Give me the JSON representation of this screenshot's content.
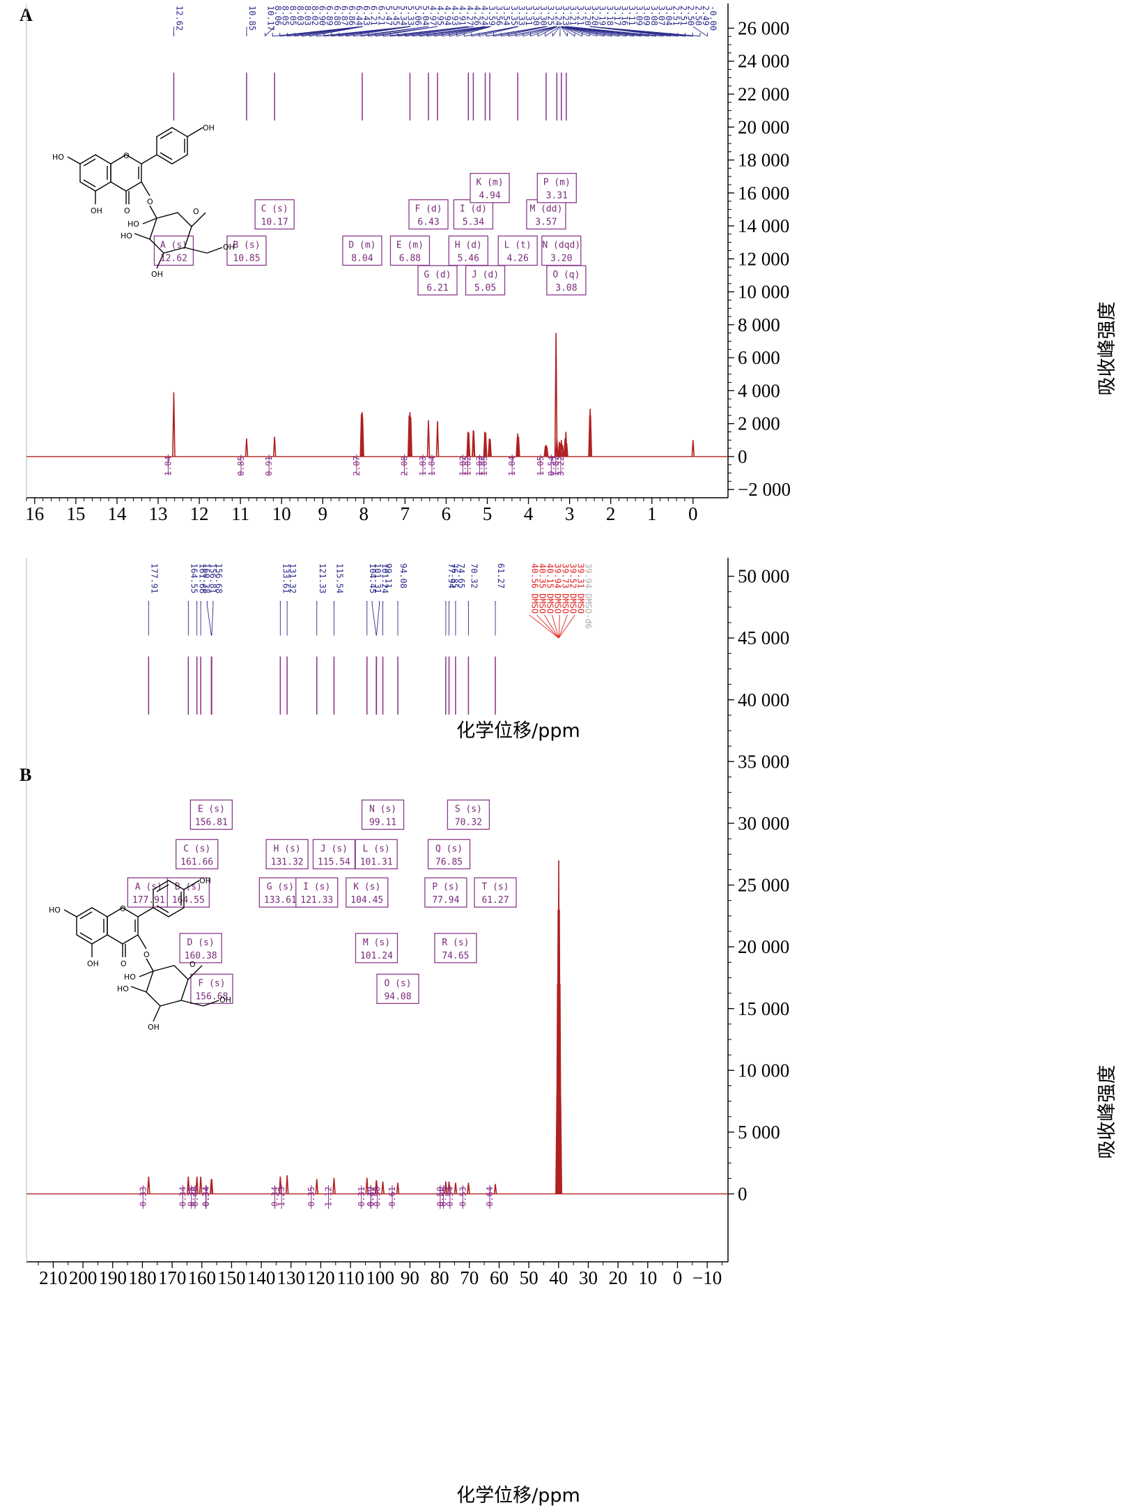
{
  "colors": {
    "spectrum": "#b02020",
    "peak_label": "#2b2b8c",
    "integral": "#8a2d8a",
    "multiplet_box": "#8a3a8a",
    "solvent_label": "#e02020",
    "axis": "#000000"
  },
  "structure_labels": {
    "oh": "OH",
    "ho": "HO",
    "o": "O"
  },
  "chart_data": [
    {
      "panel": "A",
      "type": "line",
      "title": "",
      "xlabel": "化学位移/ppm",
      "ylabel": "吸收峰强度",
      "xlim": [
        16.2,
        -0.85
      ],
      "ylim": [
        -2500,
        27500
      ],
      "x_reversed": true,
      "x_ticks": [
        16,
        15,
        14,
        13,
        12,
        11,
        10,
        9,
        8,
        7,
        6,
        5,
        4,
        3,
        2,
        1,
        0
      ],
      "x_tick_labels": [
        "16",
        "15",
        "14",
        "13",
        "12",
        "11",
        "10",
        "9",
        "8",
        "7",
        "6",
        "5",
        "4",
        "3",
        "2",
        "1",
        "0"
      ],
      "y_ticks": [
        26000,
        24000,
        22000,
        20000,
        18000,
        16000,
        14000,
        12000,
        10000,
        8000,
        6000,
        4000,
        2000,
        0,
        -2000
      ],
      "y_tick_labels": [
        "26 000",
        "24 000",
        "22 000",
        "20 000",
        "18 000",
        "16 000",
        "14 000",
        "12 000",
        "10 000",
        "8 000",
        "6 000",
        "4 000",
        "2 000",
        "0",
        "−2 000"
      ],
      "peaks": [
        {
          "x": 12.62,
          "y": 3900
        },
        {
          "x": 10.85,
          "y": 1100
        },
        {
          "x": 10.17,
          "y": 1200
        },
        {
          "x": 8.06,
          "y": 2600
        },
        {
          "x": 8.04,
          "y": 2700
        },
        {
          "x": 8.03,
          "y": 2400
        },
        {
          "x": 6.9,
          "y": 2500
        },
        {
          "x": 6.88,
          "y": 2700
        },
        {
          "x": 6.86,
          "y": 2400
        },
        {
          "x": 6.43,
          "y": 2200
        },
        {
          "x": 6.21,
          "y": 2150
        },
        {
          "x": 5.47,
          "y": 1500
        },
        {
          "x": 5.45,
          "y": 1450
        },
        {
          "x": 5.34,
          "y": 1600
        },
        {
          "x": 5.33,
          "y": 1550
        },
        {
          "x": 5.06,
          "y": 1500
        },
        {
          "x": 5.04,
          "y": 1450
        },
        {
          "x": 4.95,
          "y": 1100
        },
        {
          "x": 4.93,
          "y": 1050
        },
        {
          "x": 4.27,
          "y": 1200
        },
        {
          "x": 4.26,
          "y": 1400
        },
        {
          "x": 4.24,
          "y": 1200
        },
        {
          "x": 3.59,
          "y": 650
        },
        {
          "x": 3.57,
          "y": 700
        },
        {
          "x": 3.55,
          "y": 600
        },
        {
          "x": 3.33,
          "y": 7500
        },
        {
          "x": 3.31,
          "y": 1100
        },
        {
          "x": 3.25,
          "y": 900
        },
        {
          "x": 3.23,
          "y": 800
        },
        {
          "x": 3.2,
          "y": 1000
        },
        {
          "x": 3.17,
          "y": 700
        },
        {
          "x": 3.11,
          "y": 1100
        },
        {
          "x": 3.09,
          "y": 1500
        },
        {
          "x": 3.07,
          "y": 800
        },
        {
          "x": 2.51,
          "y": 2500
        },
        {
          "x": 2.5,
          "y": 2900
        },
        {
          "x": 2.49,
          "y": 2500
        },
        {
          "x": 0.0,
          "y": 1000
        }
      ],
      "peak_labels": [
        "12.62",
        "10.85",
        "10.17",
        "8.06",
        "8.05",
        "8.05",
        "8.03",
        "8.03",
        "8.02",
        "6.90",
        "6.89",
        "6.88",
        "6.87",
        "6.86",
        "6.44",
        "6.43",
        "6.21",
        "6.21",
        "5.47",
        "5.45",
        "5.34",
        "5.33",
        "5.06",
        "5.04",
        "4.97",
        "4.95",
        "4.94",
        "4.93",
        "4.91",
        "4.27",
        "4.26",
        "4.24",
        "3.59",
        "3.56",
        "3.54",
        "3.35",
        "3.33",
        "3.31",
        "3.30",
        "3.30",
        "3.25",
        "3.24",
        "3.23",
        "3.21",
        "3.21",
        "3.20",
        "3.20",
        "3.19",
        "3.18",
        "3.17",
        "3.16",
        "3.11",
        "3.09",
        "3.09",
        "3.08",
        "3.07",
        "3.04",
        "2.51",
        "2.51",
        "2.50",
        "2.50",
        "2.49",
        "-0.00"
      ],
      "integrals": [
        {
          "x": 12.62,
          "label": "1.04"
        },
        {
          "x": 10.85,
          "label": "0.85"
        },
        {
          "x": 10.17,
          "label": "0.91"
        },
        {
          "x": 8.04,
          "label": "2.07"
        },
        {
          "x": 6.88,
          "label": "2.08"
        },
        {
          "x": 6.43,
          "label": "1.03"
        },
        {
          "x": 6.21,
          "label": "1.04"
        },
        {
          "x": 5.46,
          "label": "1.02"
        },
        {
          "x": 5.34,
          "label": "1.02"
        },
        {
          "x": 5.05,
          "label": "1.03"
        },
        {
          "x": 4.94,
          "label": "1.05"
        },
        {
          "x": 4.26,
          "label": "1.04"
        },
        {
          "x": 3.57,
          "label": "1.05"
        },
        {
          "x": 3.31,
          "label": "0.54"
        },
        {
          "x": 3.2,
          "label": "1.87"
        },
        {
          "x": 3.08,
          "label": "3.22"
        }
      ],
      "multiplets": [
        {
          "letter": "A",
          "mult": "s",
          "shift": "12.62",
          "cx": 12.62,
          "y": 12500
        },
        {
          "letter": "B",
          "mult": "s",
          "shift": "10.85",
          "cx": 10.85,
          "y": 12500
        },
        {
          "letter": "C",
          "mult": "s",
          "shift": "10.17",
          "cx": 10.17,
          "y": 14700
        },
        {
          "letter": "D",
          "mult": "m",
          "shift": "8.04",
          "cx": 8.04,
          "y": 12500
        },
        {
          "letter": "E",
          "mult": "m",
          "shift": "6.88",
          "cx": 6.88,
          "y": 12500
        },
        {
          "letter": "F",
          "mult": "d",
          "shift": "6.43",
          "cx": 6.43,
          "y": 14700
        },
        {
          "letter": "G",
          "mult": "d",
          "shift": "6.21",
          "cx": 6.21,
          "y": 10700
        },
        {
          "letter": "H",
          "mult": "d",
          "shift": "5.46",
          "cx": 5.46,
          "y": 12500
        },
        {
          "letter": "I",
          "mult": "d",
          "shift": "5.34",
          "cx": 5.34,
          "y": 14700
        },
        {
          "letter": "J",
          "mult": "d",
          "shift": "5.05",
          "cx": 5.05,
          "y": 10700
        },
        {
          "letter": "K",
          "mult": "m",
          "shift": "4.94",
          "cx": 4.94,
          "y": 16300
        },
        {
          "letter": "L",
          "mult": "t",
          "shift": "4.26",
          "cx": 4.26,
          "y": 12500
        },
        {
          "letter": "M",
          "mult": "dd",
          "shift": "3.57",
          "cx": 3.57,
          "y": 14700
        },
        {
          "letter": "N",
          "mult": "dqd",
          "shift": "3.20",
          "cx": 3.2,
          "y": 12500
        },
        {
          "letter": "O",
          "mult": "q",
          "shift": "3.08",
          "cx": 3.08,
          "y": 10700
        },
        {
          "letter": "P",
          "mult": "m",
          "shift": "3.31",
          "cx": 3.31,
          "y": 16300
        }
      ]
    },
    {
      "panel": "B",
      "type": "line",
      "title": "",
      "xlabel": "化学位移/ppm",
      "ylabel": "吸收峰强度",
      "xlim": [
        219,
        -17
      ],
      "ylim": [
        -5500,
        51500
      ],
      "x_reversed": true,
      "x_ticks": [
        210,
        200,
        190,
        180,
        170,
        160,
        150,
        140,
        130,
        120,
        110,
        100,
        90,
        80,
        70,
        60,
        50,
        40,
        30,
        20,
        10,
        0,
        -10
      ],
      "x_tick_labels": [
        "210",
        "200",
        "190",
        "180",
        "170",
        "160",
        "150",
        "140",
        "130",
        "120",
        "110",
        "100",
        "90",
        "80",
        "70",
        "60",
        "50",
        "40",
        "30",
        "20",
        "10",
        "0",
        "−10"
      ],
      "y_ticks": [
        50000,
        45000,
        40000,
        35000,
        30000,
        25000,
        20000,
        15000,
        10000,
        5000,
        0
      ],
      "y_tick_labels": [
        "50 000",
        "45 000",
        "40 000",
        "35 000",
        "30 000",
        "25 000",
        "20 000",
        "15 000",
        "10 000",
        "5 000",
        "0"
      ],
      "peaks": [
        {
          "x": 177.91,
          "y": 1400
        },
        {
          "x": 164.55,
          "y": 1400
        },
        {
          "x": 161.66,
          "y": 1400
        },
        {
          "x": 160.38,
          "y": 1400
        },
        {
          "x": 156.81,
          "y": 1200
        },
        {
          "x": 156.68,
          "y": 1200
        },
        {
          "x": 133.61,
          "y": 1400
        },
        {
          "x": 131.32,
          "y": 1500
        },
        {
          "x": 121.33,
          "y": 1200
        },
        {
          "x": 115.54,
          "y": 1300
        },
        {
          "x": 104.45,
          "y": 1300
        },
        {
          "x": 101.31,
          "y": 1100
        },
        {
          "x": 101.24,
          "y": 1100
        },
        {
          "x": 99.11,
          "y": 1000
        },
        {
          "x": 94.08,
          "y": 900
        },
        {
          "x": 77.94,
          "y": 1000
        },
        {
          "x": 76.85,
          "y": 1000
        },
        {
          "x": 74.65,
          "y": 900
        },
        {
          "x": 70.32,
          "y": 900
        },
        {
          "x": 61.27,
          "y": 800
        },
        {
          "x": 40.56,
          "y": 8000
        },
        {
          "x": 40.35,
          "y": 17000
        },
        {
          "x": 40.15,
          "y": 23000
        },
        {
          "x": 39.94,
          "y": 27000
        },
        {
          "x": 39.73,
          "y": 23000
        },
        {
          "x": 39.52,
          "y": 17000
        },
        {
          "x": 39.31,
          "y": 8000
        }
      ],
      "peak_labels": [
        "177.91",
        "164.55",
        "161.66",
        "160.38",
        "156.81",
        "156.68",
        "133.61",
        "131.32",
        "121.33",
        "115.54",
        "104.45",
        "101.31",
        "101.24",
        "99.11",
        "94.08",
        "77.94",
        "76.85",
        "74.65",
        "70.32",
        "61.27"
      ],
      "solvent_labels": [
        "40.56 DMSO",
        "40.35 DMSO",
        "40.15 DMSO",
        "39.94 DMSO",
        "39.73 DMSO",
        "39.52 DMSO",
        "39.31 DMSO"
      ],
      "solvent_label_partial": "39.94 DMSO-d6",
      "integrals": [
        {
          "x": 177.91,
          "label": "0.33"
        },
        {
          "x": 164.55,
          "label": "0.34"
        },
        {
          "x": 161.66,
          "label": "0.38"
        },
        {
          "x": 160.38,
          "label": "0.40"
        },
        {
          "x": 156.81,
          "label": "0.34"
        },
        {
          "x": 156.68,
          "label": "0.34"
        },
        {
          "x": 133.61,
          "label": "0.34"
        },
        {
          "x": 131.32,
          "label": "1.23"
        },
        {
          "x": 121.33,
          "label": "0.35"
        },
        {
          "x": 115.54,
          "label": "1.12"
        },
        {
          "x": 104.45,
          "label": "0.31"
        },
        {
          "x": 101.31,
          "label": "0.19"
        },
        {
          "x": 101.24,
          "label": "0.42"
        },
        {
          "x": 99.11,
          "label": "0.50"
        },
        {
          "x": 94.08,
          "label": "0.61"
        },
        {
          "x": 77.94,
          "label": "0.50"
        },
        {
          "x": 76.85,
          "label": "0.56"
        },
        {
          "x": 74.65,
          "label": "0.54"
        },
        {
          "x": 70.32,
          "label": "0.53"
        },
        {
          "x": 61.27,
          "label": "0.64"
        }
      ],
      "multiplets": [
        {
          "letter": "A",
          "mult": "s",
          "shift": "177.91",
          "cx": 177.91,
          "y": 24400
        },
        {
          "letter": "B",
          "mult": "s",
          "shift": "164.55",
          "cx": 164.55,
          "y": 24400
        },
        {
          "letter": "C",
          "mult": "s",
          "shift": "161.66",
          "cx": 161.66,
          "y": 27500
        },
        {
          "letter": "D",
          "mult": "s",
          "shift": "160.38",
          "cx": 160.38,
          "y": 19900
        },
        {
          "letter": "E",
          "mult": "s",
          "shift": "156.81",
          "cx": 156.81,
          "y": 30700
        },
        {
          "letter": "F",
          "mult": "s",
          "shift": "156.68",
          "cx": 156.68,
          "y": 16600
        },
        {
          "letter": "G",
          "mult": "s",
          "shift": "133.61",
          "cx": 133.61,
          "y": 24400
        },
        {
          "letter": "H",
          "mult": "s",
          "shift": "131.32",
          "cx": 131.32,
          "y": 27500
        },
        {
          "letter": "I",
          "mult": "s",
          "shift": "121.33",
          "cx": 121.33,
          "y": 24400
        },
        {
          "letter": "J",
          "mult": "s",
          "shift": "115.54",
          "cx": 115.54,
          "y": 27500
        },
        {
          "letter": "K",
          "mult": "s",
          "shift": "104.45",
          "cx": 104.45,
          "y": 24400
        },
        {
          "letter": "L",
          "mult": "s",
          "shift": "101.31",
          "cx": 101.31,
          "y": 27500
        },
        {
          "letter": "M",
          "mult": "s",
          "shift": "101.24",
          "cx": 101.24,
          "y": 19900
        },
        {
          "letter": "N",
          "mult": "s",
          "shift": "99.11",
          "cx": 99.11,
          "y": 30700
        },
        {
          "letter": "O",
          "mult": "s",
          "shift": "94.08",
          "cx": 94.08,
          "y": 16600
        },
        {
          "letter": "P",
          "mult": "s",
          "shift": "77.94",
          "cx": 77.94,
          "y": 24400
        },
        {
          "letter": "Q",
          "mult": "s",
          "shift": "76.85",
          "cx": 76.85,
          "y": 27500
        },
        {
          "letter": "R",
          "mult": "s",
          "shift": "74.65",
          "cx": 74.65,
          "y": 19900
        },
        {
          "letter": "S",
          "mult": "s",
          "shift": "70.32",
          "cx": 70.32,
          "y": 30700
        },
        {
          "letter": "T",
          "mult": "s",
          "shift": "61.27",
          "cx": 61.27,
          "y": 24400
        }
      ]
    }
  ]
}
